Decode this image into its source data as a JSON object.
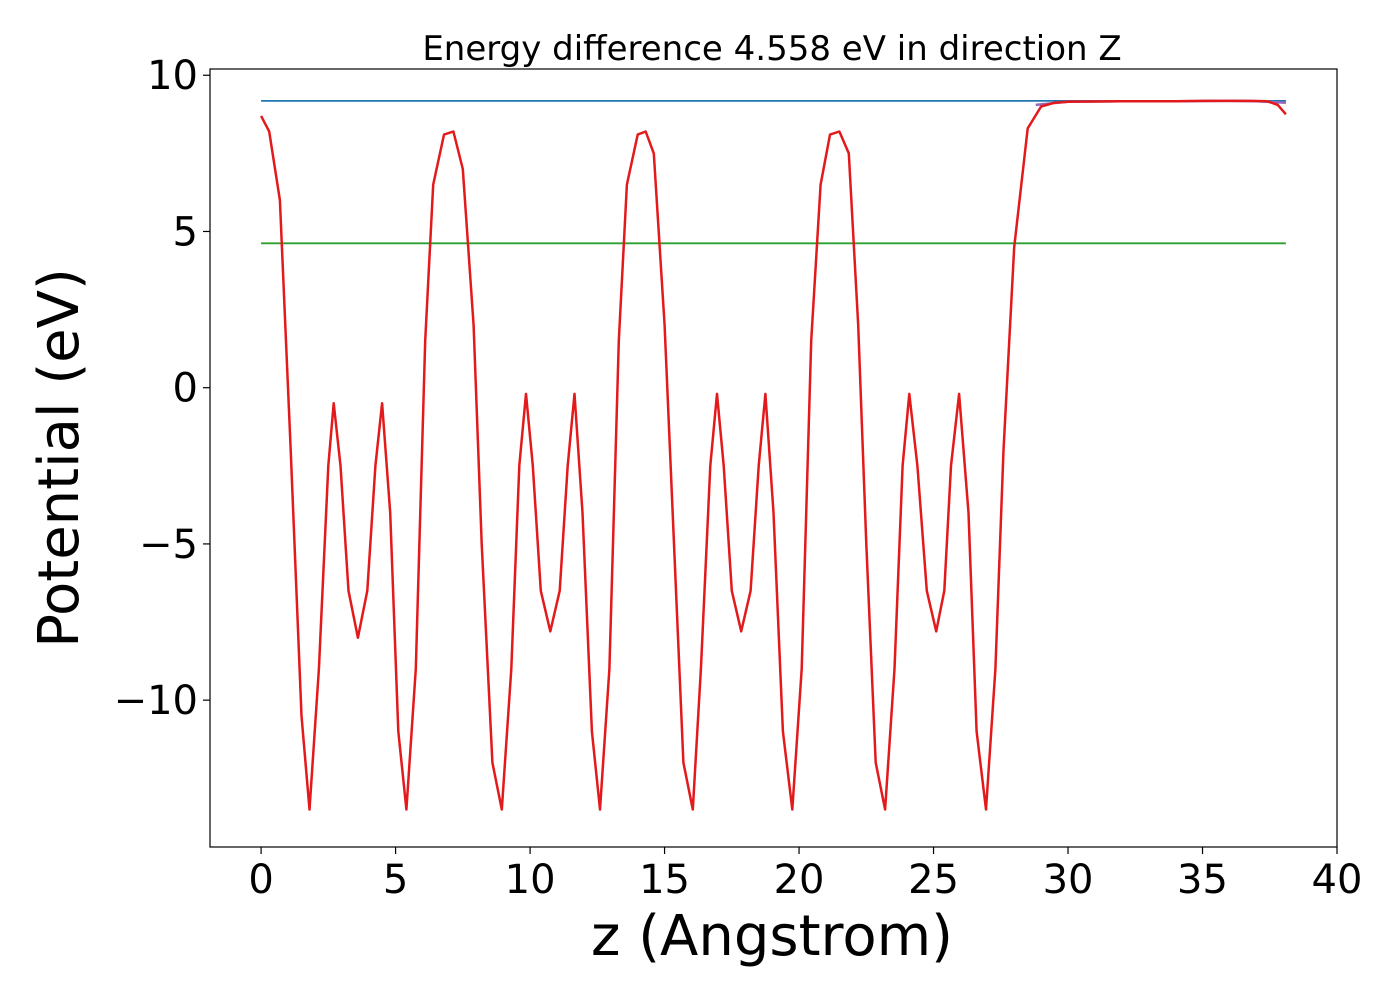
{
  "chart_data": {
    "type": "line",
    "title": "Energy difference 4.558 eV in direction Z",
    "xlabel": "z (Angstrom)",
    "ylabel": "Potential (eV)",
    "xlim": [
      -1.9,
      40
    ],
    "ylim": [
      -14.7,
      10.2
    ],
    "xticks": [
      0,
      5,
      10,
      15,
      20,
      25,
      30,
      35,
      40
    ],
    "xtick_labels": [
      "0",
      "5",
      "10",
      "15",
      "20",
      "25",
      "30",
      "35",
      "40"
    ],
    "yticks": [
      10,
      5,
      0,
      -5,
      -10
    ],
    "ytick_labels": [
      "10",
      "5",
      "0",
      "−5",
      "−10"
    ],
    "grid": false,
    "series": [
      {
        "color": "#1f77b4",
        "style": "constant",
        "x": [
          0,
          38.1
        ],
        "y": [
          9.18,
          9.18
        ]
      },
      {
        "color": "#2ca02c",
        "style": "constant",
        "x": [
          0,
          38.1
        ],
        "y": [
          4.62,
          4.62
        ]
      },
      {
        "color": "#9467bd",
        "style": "line",
        "x": [
          28.8,
          30,
          32,
          34,
          36,
          37,
          38.1
        ],
        "y": [
          9.05,
          9.15,
          9.17,
          9.17,
          9.18,
          9.17,
          9.12
        ]
      },
      {
        "color": "#e31a1c",
        "style": "line",
        "x": [
          0,
          0.3,
          0.7,
          1.1,
          1.5,
          1.8,
          2.15,
          2.5,
          2.7,
          2.95,
          3.25,
          3.6,
          3.95,
          4.25,
          4.5,
          4.8,
          5.1,
          5.4,
          5.75,
          6.1,
          6.4,
          6.8,
          7.15,
          7.5,
          7.9,
          8.2,
          8.6,
          8.95,
          9.3,
          9.6,
          9.85,
          10.1,
          10.4,
          10.75,
          11.1,
          11.4,
          11.65,
          11.95,
          12.3,
          12.6,
          12.95,
          13.3,
          13.6,
          14.0,
          14.3,
          14.6,
          15.0,
          15.35,
          15.7,
          16.05,
          16.35,
          16.7,
          16.95,
          17.2,
          17.5,
          17.85,
          18.2,
          18.5,
          18.75,
          19.05,
          19.4,
          19.75,
          20.1,
          20.45,
          20.8,
          21.15,
          21.5,
          21.85,
          22.2,
          22.5,
          22.85,
          23.2,
          23.55,
          23.85,
          24.1,
          24.4,
          24.75,
          25.1,
          25.4,
          25.65,
          25.95,
          26.3,
          26.6,
          26.95,
          27.3,
          27.6,
          28.0,
          28.5,
          29.0,
          29.5,
          30.0,
          31.0,
          32.0,
          33.0,
          34.0,
          35.0,
          36.0,
          36.8,
          37.4,
          37.8,
          38.1
        ],
        "y": [
          8.7,
          8.2,
          6.0,
          -2.0,
          -10.5,
          -13.5,
          -9.0,
          -2.5,
          -0.5,
          -2.5,
          -6.5,
          -8.0,
          -6.5,
          -2.5,
          -0.5,
          -4.0,
          -11.0,
          -13.5,
          -9.0,
          1.5,
          6.5,
          8.1,
          8.2,
          7.0,
          2.0,
          -5.0,
          -12.0,
          -13.5,
          -9.0,
          -2.5,
          -0.2,
          -2.5,
          -6.5,
          -7.8,
          -6.5,
          -2.5,
          -0.2,
          -4.0,
          -11.0,
          -13.5,
          -9.0,
          1.5,
          6.5,
          8.1,
          8.2,
          7.5,
          2.0,
          -5.0,
          -12.0,
          -13.5,
          -9.0,
          -2.5,
          -0.2,
          -2.5,
          -6.5,
          -7.8,
          -6.5,
          -2.5,
          -0.2,
          -4.0,
          -11.0,
          -13.5,
          -9.0,
          1.5,
          6.5,
          8.1,
          8.2,
          7.5,
          2.0,
          -5.0,
          -12.0,
          -13.5,
          -9.0,
          -2.5,
          -0.2,
          -2.5,
          -6.5,
          -7.8,
          -6.5,
          -2.5,
          -0.2,
          -4.0,
          -11.0,
          -13.5,
          -9.0,
          -2.0,
          4.5,
          8.3,
          9.0,
          9.12,
          9.15,
          9.16,
          9.17,
          9.17,
          9.17,
          9.18,
          9.18,
          9.18,
          9.17,
          9.05,
          8.75
        ]
      }
    ]
  }
}
